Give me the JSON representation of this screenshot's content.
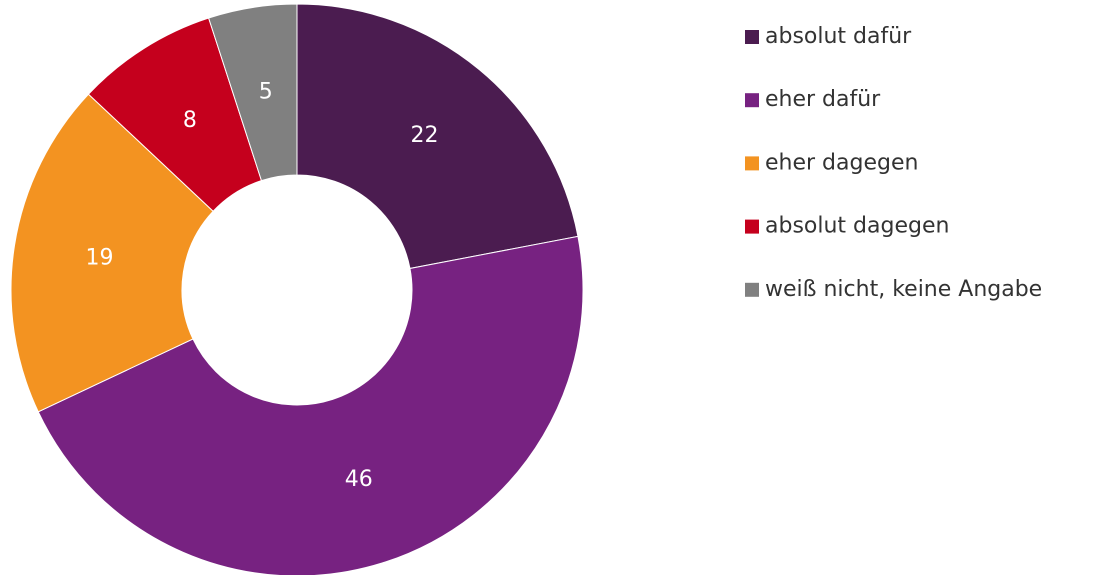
{
  "chart_data": {
    "type": "donut",
    "categories": [
      "absolut dafür",
      "eher dafür",
      "eher dagegen",
      "absolut dagegen",
      "weiß nicht, keine Angabe"
    ],
    "values": [
      22,
      46,
      19,
      8,
      5
    ],
    "colors": [
      "#4b1c50",
      "#772281",
      "#f39321",
      "#c5001d",
      "#808080"
    ],
    "legend": "right"
  }
}
